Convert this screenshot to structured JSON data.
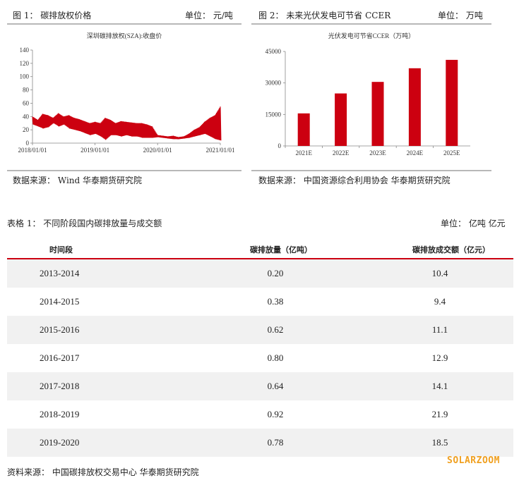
{
  "figure1": {
    "heading": "图 1：  碳排放权价格",
    "unit": "单位：  元/吨",
    "source": "数据来源：  Wind  华泰期货研究院",
    "chart_data": {
      "type": "line",
      "title": "深圳碳排放权(SZA):收盘价",
      "ylim": [
        0,
        140
      ],
      "yticks": [
        "140",
        "120",
        "100",
        "80",
        "60",
        "40",
        "20",
        "0"
      ],
      "xticks": [
        "2018/01/01",
        "2019/01/01",
        "2020/01/01",
        "2021/01/01"
      ],
      "series_color": "#cc0010",
      "series": [
        {
          "x": [
            "2018/01/01",
            "2018/02/01",
            "2018/03/01",
            "2018/04/01",
            "2018/05/01",
            "2018/06/01",
            "2018/07/01",
            "2018/08/01",
            "2018/09/01",
            "2018/10/01",
            "2018/11/01",
            "2018/12/01",
            "2019/01/01",
            "2019/02/01",
            "2019/03/01",
            "2019/04/01",
            "2019/05/01",
            "2019/06/01",
            "2019/07/01",
            "2019/08/01",
            "2019/09/01",
            "2019/10/01",
            "2019/11/01",
            "2019/12/01",
            "2020/01/01",
            "2020/02/01",
            "2020/03/01",
            "2020/04/01",
            "2020/05/01",
            "2020/06/01",
            "2020/07/01",
            "2020/08/01",
            "2020/09/01",
            "2020/10/01",
            "2020/11/01",
            "2020/12/01",
            "2021/01/01"
          ],
          "high": [
            40,
            35,
            44,
            42,
            38,
            45,
            40,
            42,
            38,
            36,
            33,
            30,
            32,
            30,
            38,
            35,
            30,
            33,
            32,
            31,
            30,
            30,
            28,
            25,
            12,
            11,
            10,
            11,
            9,
            10,
            14,
            20,
            24,
            32,
            38,
            42,
            55
          ],
          "low": [
            28,
            25,
            22,
            24,
            30,
            25,
            28,
            22,
            20,
            18,
            15,
            12,
            14,
            10,
            5,
            12,
            12,
            10,
            12,
            10,
            10,
            8,
            8,
            8,
            9,
            8,
            7,
            6,
            6,
            7,
            8,
            10,
            12,
            14,
            10,
            6,
            4
          ]
        }
      ]
    }
  },
  "figure2": {
    "heading": "图 2：  未来光伏发电可节省 CCER",
    "unit": "单位：  万吨",
    "source": "数据来源：  中国资源综合利用协会  华泰期货研究院",
    "chart_data": {
      "type": "bar",
      "title": "光伏发电可节省CCER（万吨）",
      "categories": [
        "2021E",
        "2022E",
        "2023E",
        "2024E",
        "2025E"
      ],
      "values": [
        15500,
        25000,
        30500,
        37000,
        41000
      ],
      "ylim": [
        0,
        45000
      ],
      "yticks": [
        "45000",
        "30000",
        "15000",
        "0"
      ],
      "bar_color": "#cc0010"
    }
  },
  "table1": {
    "heading": "表格  1：  不同阶段国内碳排放量与成交额",
    "unit": "单位：  亿吨  亿元",
    "columns": [
      "时间段",
      "碳排放量（亿吨）",
      "碳排放成交额（亿元）"
    ],
    "rows": [
      [
        "2013-2014",
        "0.20",
        "10.4"
      ],
      [
        "2014-2015",
        "0.38",
        "9.4"
      ],
      [
        "2015-2016",
        "0.62",
        "11.1"
      ],
      [
        "2016-2017",
        "0.80",
        "12.9"
      ],
      [
        "2017-2018",
        "0.64",
        "14.1"
      ],
      [
        "2018-2019",
        "0.92",
        "21.9"
      ],
      [
        "2019-2020",
        "0.78",
        "18.5"
      ]
    ],
    "source": "资料来源：   中国碳排放权交易中心  华泰期货研究院",
    "accent_color": "#cc0010"
  },
  "watermark": "SOLARZOOM"
}
